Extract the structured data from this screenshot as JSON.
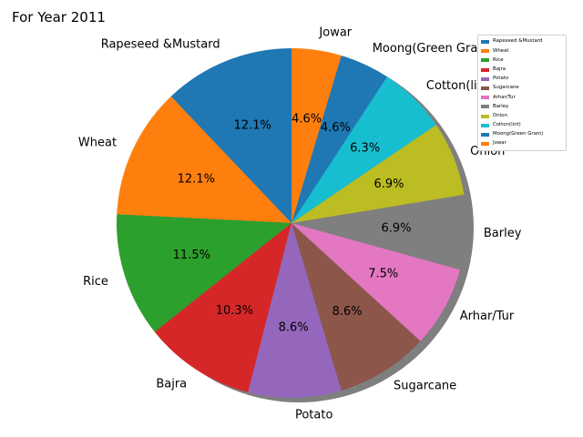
{
  "chart_data": {
    "type": "pie",
    "title": "For Year 2011",
    "categories": [
      "Rapeseed &Mustard",
      "Wheat",
      "Rice",
      "Bajra",
      "Potato",
      "Sugarcane",
      "Arhar/Tur",
      "Barley",
      "Onion",
      "Cotton(lint)",
      "Moong(Green Gram)",
      "Jowar"
    ],
    "values": [
      12.1,
      12.1,
      11.5,
      10.3,
      8.6,
      8.6,
      7.5,
      6.9,
      6.9,
      6.3,
      4.6,
      4.6
    ],
    "percent_labels": [
      "12.1%",
      "12.1%",
      "11.5%",
      "10.3%",
      "8.6%",
      "8.6%",
      "7.5%",
      "6.9%",
      "6.9%",
      "6.3%",
      "4.6%",
      "4.6%"
    ],
    "colors": [
      "#1f77b4",
      "#ff7f0e",
      "#2ca02c",
      "#d62728",
      "#9467bd",
      "#8c564b",
      "#e377c2",
      "#7f7f7f",
      "#bcbd22",
      "#17becf",
      "#1f77b4",
      "#ff7f0e"
    ],
    "start_angle_deg": 90,
    "direction": "counterclockwise",
    "shadow": true,
    "legend_position": "top-right"
  }
}
